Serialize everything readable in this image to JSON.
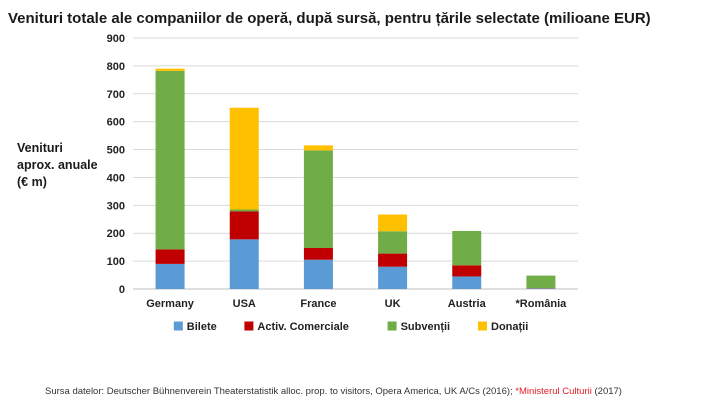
{
  "chart_data": {
    "type": "bar",
    "stacked": true,
    "title": "Venituri totale ale companiilor de operă, după sursă, pentru țările selectate (milioane EUR)",
    "xlabel": "",
    "ylabel": "Venituri\naprox. anuale\n(€ m)",
    "ylim": [
      0,
      900
    ],
    "yticks": [
      0,
      100,
      200,
      300,
      400,
      500,
      600,
      700,
      800,
      900
    ],
    "grid": true,
    "legend_position": "bottom",
    "categories": [
      "Germany",
      "USA",
      "France",
      "UK",
      "Austria",
      "*România"
    ],
    "series": [
      {
        "name": "Bilete",
        "color": "#5b9bd5",
        "values": [
          90,
          178,
          105,
          80,
          45,
          2
        ]
      },
      {
        "name": "Activ. Comerciale",
        "color": "#c00000",
        "values": [
          52,
          100,
          42,
          47,
          40,
          1
        ]
      },
      {
        "name": "Subvenții",
        "color": "#70ad47",
        "values": [
          640,
          7,
          350,
          80,
          123,
          45
        ]
      },
      {
        "name": "Donații",
        "color": "#ffc000",
        "values": [
          8,
          365,
          18,
          60,
          0,
          0
        ]
      }
    ]
  },
  "source": {
    "prefix": "Sursa datelor: Deutscher Bühnenverein Theaterstatistik alloc. prop. to visitors, Opera America, UK A/Cs (2016); ",
    "highlight": "*Ministerul Culturii",
    "suffix": " (2017)"
  }
}
